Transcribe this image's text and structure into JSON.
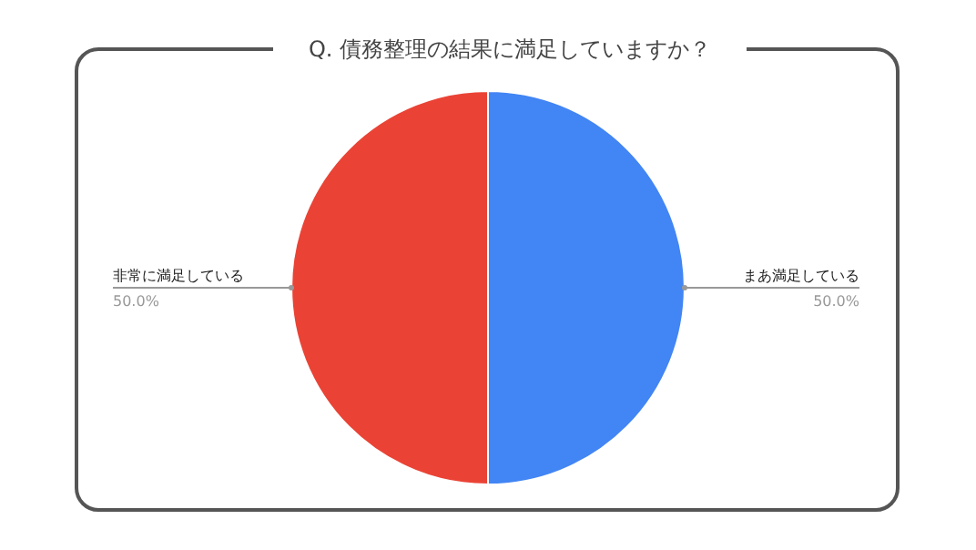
{
  "chart_data": {
    "type": "pie",
    "title": "Q. 債務整理の結果に満足していますか？",
    "categories": [
      "まあ満足している",
      "非常に満足している"
    ],
    "values": [
      50,
      50
    ],
    "colors": [
      "#4285f4",
      "#ea4335"
    ],
    "value_labels": [
      "50.0%",
      "50.0%"
    ]
  }
}
